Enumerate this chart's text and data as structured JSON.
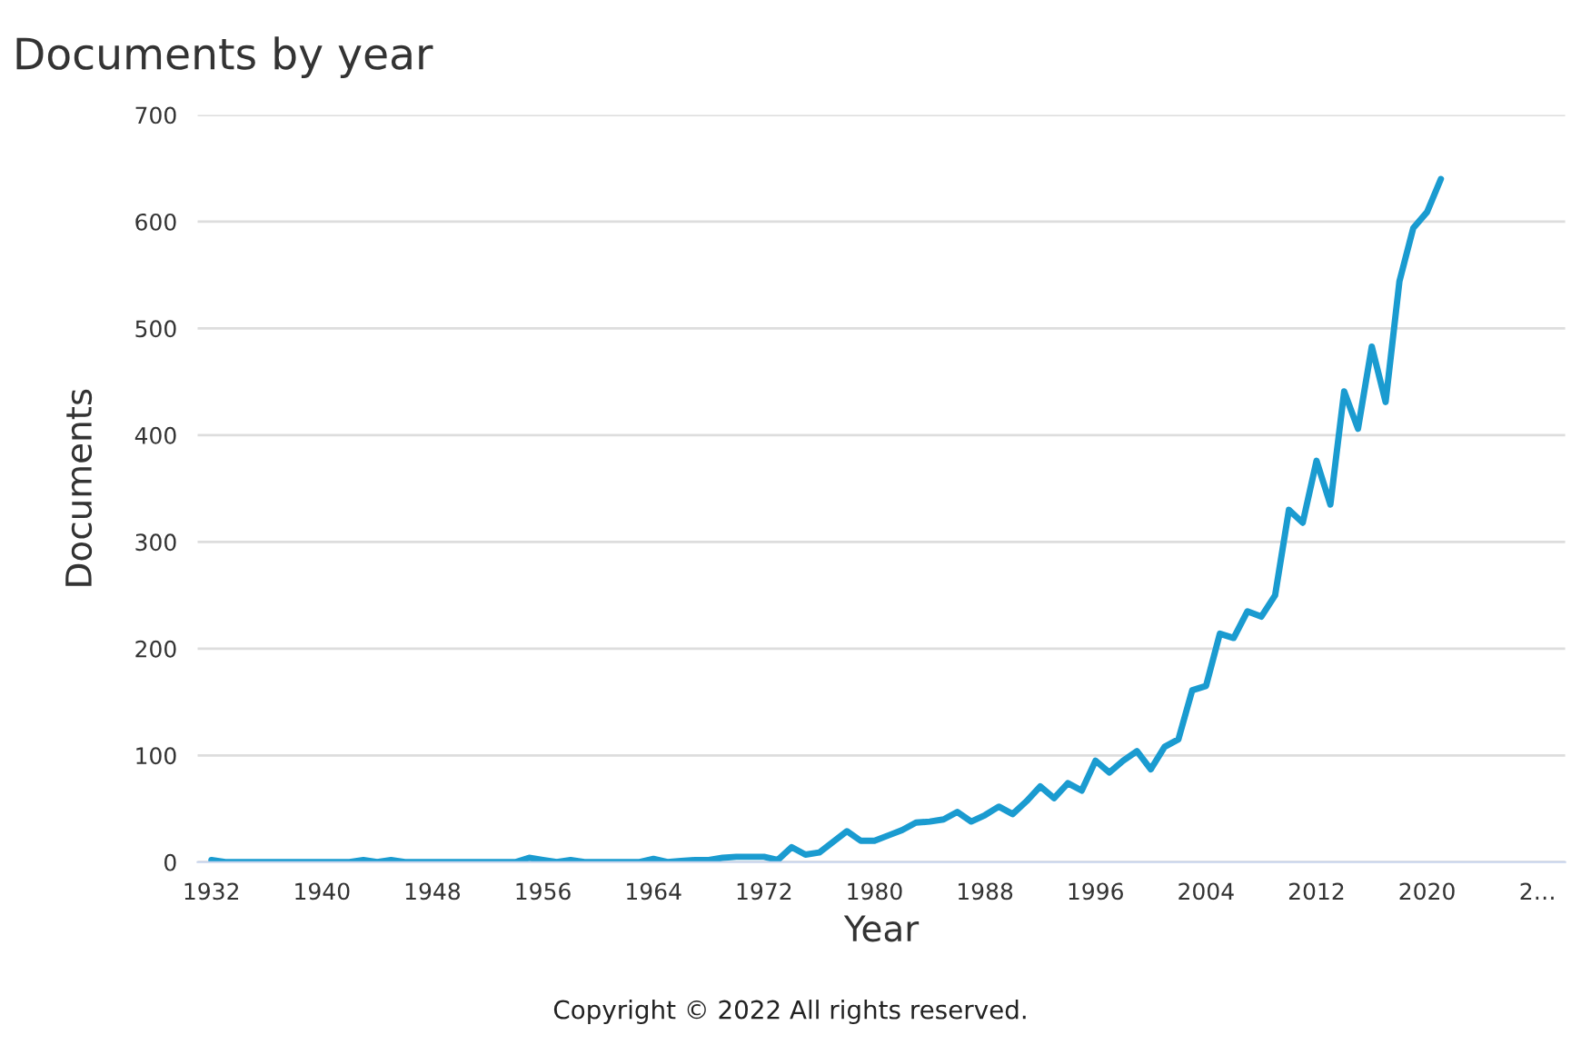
{
  "chart_data": {
    "type": "line",
    "title": "Documents by year",
    "xlabel": "Year",
    "ylabel": "Documents",
    "annotations": [
      "Copyright © 2022 All rights reserved."
    ],
    "x": [
      1932,
      1933,
      1934,
      1935,
      1936,
      1937,
      1938,
      1939,
      1940,
      1941,
      1942,
      1943,
      1944,
      1945,
      1946,
      1947,
      1948,
      1949,
      1950,
      1951,
      1952,
      1953,
      1954,
      1955,
      1956,
      1957,
      1958,
      1959,
      1960,
      1961,
      1962,
      1963,
      1964,
      1965,
      1966,
      1967,
      1968,
      1969,
      1970,
      1971,
      1972,
      1973,
      1974,
      1975,
      1976,
      1977,
      1978,
      1979,
      1980,
      1981,
      1982,
      1983,
      1984,
      1985,
      1986,
      1987,
      1988,
      1989,
      1990,
      1991,
      1992,
      1993,
      1994,
      1995,
      1996,
      1997,
      1998,
      1999,
      2000,
      2001,
      2002,
      2003,
      2004,
      2005,
      2006,
      2007,
      2008,
      2009,
      2010,
      2011,
      2012,
      2013,
      2014,
      2015,
      2016,
      2017,
      2018,
      2019,
      2020,
      2021
    ],
    "series": [
      {
        "color": "#1a9bd0",
        "values": [
          2,
          0,
          0,
          0,
          0,
          0,
          0,
          0,
          0,
          0,
          0,
          2,
          0,
          2,
          0,
          0,
          0,
          0,
          0,
          0,
          0,
          0,
          0,
          4,
          2,
          0,
          2,
          0,
          0,
          0,
          0,
          0,
          3,
          0,
          1,
          2,
          2,
          4,
          5,
          5,
          5,
          2,
          14,
          7,
          9,
          19,
          29,
          20,
          20,
          25,
          30,
          37,
          38,
          40,
          47,
          38,
          44,
          52,
          45,
          57,
          71,
          60,
          74,
          67,
          95,
          84,
          95,
          104,
          87,
          108,
          115,
          161,
          165,
          214,
          210,
          235,
          230,
          250,
          330,
          318,
          376,
          335,
          441,
          406,
          483,
          431,
          544,
          594,
          609,
          640
        ]
      }
    ],
    "xlim": [
      1931,
      2030
    ],
    "xticks": [
      1932,
      1940,
      1948,
      1956,
      1964,
      1972,
      1980,
      1988,
      1996,
      2004,
      2012,
      2020,
      {
        "value": 2028,
        "label": "2…"
      }
    ],
    "ylim": [
      0,
      700
    ],
    "yticks": [
      0,
      100,
      200,
      300,
      400,
      500,
      600,
      700
    ],
    "grid": "y",
    "legend": false,
    "marker": "none",
    "line_style": "solid"
  }
}
